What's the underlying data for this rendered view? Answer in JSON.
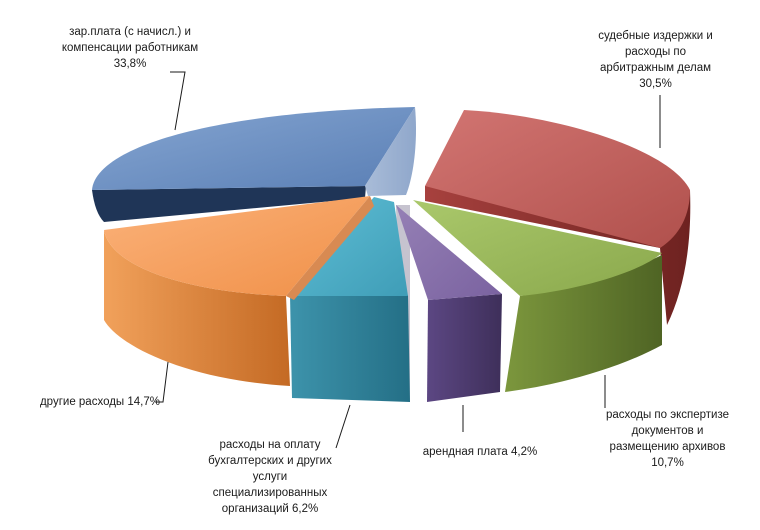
{
  "chart_data": {
    "type": "pie",
    "title": "",
    "slices": [
      {
        "lines": [
          "зар.плата (с начисл.) и",
          "компенсации работникам"
        ],
        "pct": "33,8%",
        "value": 33.8,
        "color": "#6f93c4"
      },
      {
        "lines": [
          "судебные издержки и",
          "расходы по",
          "арбитражным делам"
        ],
        "pct": "30,5%",
        "value": 30.5,
        "color": "#c0504d"
      },
      {
        "lines": [
          "расходы по экспертизе",
          "документов и",
          "размещению архивов"
        ],
        "pct": "10,7%",
        "value": 10.7,
        "color": "#9bbb59"
      },
      {
        "lines": [
          "арендная плата 4,2%"
        ],
        "pct": "",
        "value": 4.2,
        "color": "#8064a2"
      },
      {
        "lines": [
          "расходы на оплату",
          "бухгалтерских и других",
          "услуги",
          "специализированных",
          "организаций 6,2%"
        ],
        "pct": "",
        "value": 6.2,
        "color": "#4bacc6"
      },
      {
        "lines": [
          "другие расходы 14,7%"
        ],
        "pct": "",
        "value": 14.7,
        "color": "#f79646"
      }
    ]
  }
}
